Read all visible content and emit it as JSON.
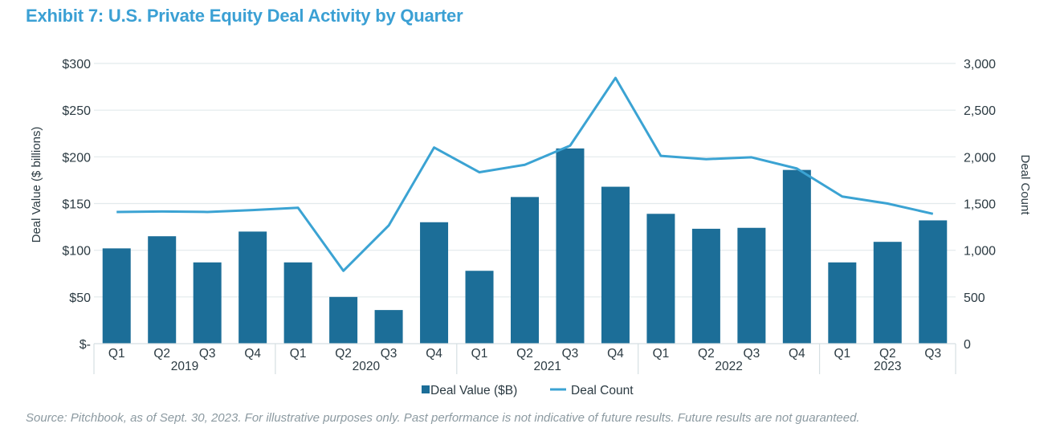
{
  "chart_data": {
    "type": "bar+line",
    "title": "Exhibit 7: U.S. Private Equity Deal Activity by Quarter",
    "categories": [
      "Q1",
      "Q2",
      "Q3",
      "Q4",
      "Q1",
      "Q2",
      "Q3",
      "Q4",
      "Q1",
      "Q2",
      "Q3",
      "Q4",
      "Q1",
      "Q2",
      "Q3",
      "Q4",
      "Q1",
      "Q2",
      "Q3"
    ],
    "years": [
      {
        "label": "2019",
        "count": 4
      },
      {
        "label": "2020",
        "count": 4
      },
      {
        "label": "2021",
        "count": 4
      },
      {
        "label": "2022",
        "count": 4
      },
      {
        "label": "2023",
        "count": 3
      }
    ],
    "series": [
      {
        "name": "Deal Value ($B)",
        "type": "bar",
        "axis": "left",
        "color": "#1c6e98",
        "values": [
          102,
          115,
          87,
          120,
          87,
          50,
          36,
          130,
          78,
          157,
          209,
          168,
          139,
          123,
          124,
          186,
          87,
          109,
          132
        ]
      },
      {
        "name": "Deal Count",
        "type": "line",
        "axis": "right",
        "color": "#3ba3d3",
        "values": [
          1410,
          1415,
          1410,
          1430,
          1455,
          780,
          1265,
          2100,
          1835,
          1915,
          2120,
          2845,
          2010,
          1975,
          1995,
          1875,
          1575,
          1500,
          1390
        ]
      }
    ],
    "ylabel": "Deal Value ($ billions)",
    "ylabel_right": "Deal Count",
    "ylim": [
      0,
      300
    ],
    "ylim_right": [
      0,
      3000
    ],
    "yticks": [
      0,
      50,
      100,
      150,
      200,
      250,
      300
    ],
    "ytick_labels": [
      "$-",
      "$50",
      "$100",
      "$150",
      "$200",
      "$250",
      "$300"
    ],
    "yticks_right": [
      0,
      500,
      1000,
      1500,
      2000,
      2500,
      3000
    ],
    "ytick_labels_right": [
      "0",
      "500",
      "1,000",
      "1,500",
      "2,000",
      "2,500",
      "3,000"
    ],
    "grid": true,
    "legend_position": "bottom"
  },
  "source": "Source: Pitchbook, as of Sept. 30, 2023. For illustrative purposes only. Past performance is not indicative of future results. Future results are not guaranteed."
}
